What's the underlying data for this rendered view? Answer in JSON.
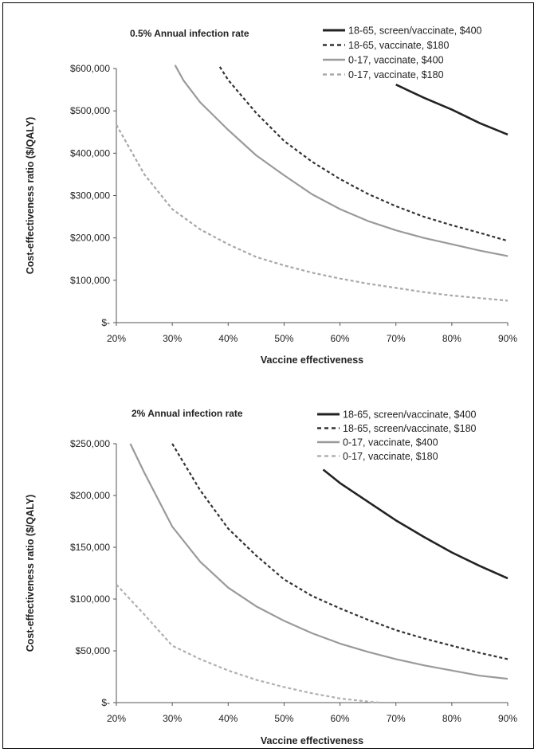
{
  "chart_data": [
    {
      "type": "line",
      "title": "0.5% Annual infection rate",
      "xlabel": "Vaccine effectiveness",
      "ylabel": "Cost-effectiveness ratio ($/QALY)",
      "xlim": [
        20,
        90
      ],
      "ylim": [
        0,
        600000
      ],
      "x_tick_labels": [
        "20%",
        "30%",
        "40%",
        "50%",
        "60%",
        "70%",
        "80%",
        "90%"
      ],
      "y_tick_labels": [
        "$-",
        "$100,000",
        "$200,000",
        "$300,000",
        "$400,000",
        "$500,000",
        "$600,000"
      ],
      "legend_position": "top-right",
      "series": [
        {
          "name": "18-65, screen/vaccinate, $400",
          "color": "#222222",
          "dash": "solid",
          "x": [
            70,
            75,
            80,
            85,
            90
          ],
          "y": [
            562000,
            531000,
            503000,
            471000,
            444000
          ]
        },
        {
          "name": "18-65, vaccinate, $180",
          "color": "#333333",
          "dash": "dotted",
          "x": [
            38.5,
            40,
            45,
            50,
            55,
            60,
            65,
            70,
            75,
            80,
            85,
            90
          ],
          "y": [
            604000,
            573000,
            495000,
            429000,
            380000,
            339000,
            304000,
            275000,
            250000,
            230000,
            212000,
            193000
          ]
        },
        {
          "name": "0-17, vaccinate, $400",
          "color": "#9a9a9a",
          "dash": "solid",
          "x": [
            30.5,
            32,
            35,
            40,
            45,
            50,
            55,
            60,
            65,
            70,
            75,
            80,
            85,
            90
          ],
          "y": [
            608000,
            572000,
            520000,
            455000,
            395000,
            348000,
            303000,
            268000,
            240000,
            218000,
            200000,
            185000,
            170000,
            157000
          ]
        },
        {
          "name": "0-17, vaccinate, $180",
          "color": "#a8a8a8",
          "dash": "dotted",
          "x": [
            20,
            25,
            30,
            35,
            40,
            45,
            50,
            55,
            60,
            65,
            70,
            75,
            80,
            85,
            90
          ],
          "y": [
            467000,
            350000,
            268000,
            220000,
            185000,
            155000,
            135000,
            118000,
            104000,
            92000,
            82000,
            72000,
            64000,
            58000,
            52000
          ]
        }
      ]
    },
    {
      "type": "line",
      "title": "2% Annual infection rate",
      "xlabel": "Vaccine effectiveness",
      "ylabel": "Cost-effectiveness ratio ($/QALY)",
      "xlim": [
        20,
        90
      ],
      "ylim": [
        0,
        250000
      ],
      "x_tick_labels": [
        "20%",
        "30%",
        "40%",
        "50%",
        "60%",
        "70%",
        "80%",
        "90%"
      ],
      "y_tick_labels": [
        "$-",
        "$50,000",
        "$100,000",
        "$150,000",
        "$200,000",
        "$250,000"
      ],
      "legend_position": "top-right",
      "series": [
        {
          "name": "18-65, screen/vaccinate, $400",
          "color": "#222222",
          "dash": "solid",
          "x": [
            57,
            60,
            65,
            70,
            75,
            80,
            85,
            90
          ],
          "y": [
            225000,
            212000,
            194000,
            176000,
            160000,
            145000,
            132000,
            120000
          ]
        },
        {
          "name": "18-65, screen/vaccinate, $180",
          "color": "#333333",
          "dash": "dotted",
          "x": [
            30,
            35,
            40,
            45,
            50,
            55,
            60,
            65,
            70,
            75,
            80,
            85,
            90
          ],
          "y": [
            250000,
            205000,
            168000,
            142000,
            119000,
            103000,
            91000,
            80000,
            70000,
            62000,
            55000,
            48000,
            42000
          ]
        },
        {
          "name": "0-17, vaccinate, $400",
          "color": "#9a9a9a",
          "dash": "solid",
          "x": [
            22.5,
            25,
            30,
            35,
            40,
            45,
            50,
            55,
            60,
            65,
            70,
            75,
            80,
            85,
            90
          ],
          "y": [
            250000,
            222000,
            170000,
            136000,
            111000,
            93000,
            79000,
            67000,
            57000,
            49000,
            42000,
            36000,
            31000,
            26000,
            23000
          ]
        },
        {
          "name": "0-17, vaccinate, $180",
          "color": "#b0b0b0",
          "dash": "dotted",
          "x": [
            20,
            25,
            30,
            35,
            40,
            45,
            50,
            55,
            60,
            65,
            67
          ],
          "y": [
            114000,
            85000,
            55000,
            42000,
            31000,
            22000,
            15000,
            9000,
            4000,
            1000,
            0
          ]
        }
      ]
    }
  ]
}
